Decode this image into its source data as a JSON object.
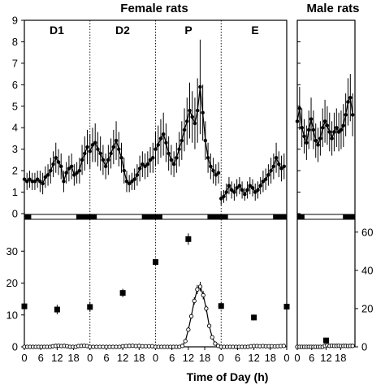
{
  "chart_data": {
    "type": "line",
    "titles": {
      "female": "Female rats",
      "male": "Male rats"
    },
    "xlabel": "Time of Day (h)",
    "phases": [
      "D1",
      "D2",
      "P",
      "E"
    ],
    "hour_ticks": [
      "0",
      "6",
      "12",
      "18"
    ],
    "top_panel": {
      "ylim": [
        0,
        9
      ],
      "yticks": [
        "0",
        "1",
        "2",
        "3",
        "4",
        "5",
        "6",
        "7",
        "8",
        "9"
      ],
      "female_series": [
        {
          "phase": "D1",
          "values": [
            1.6,
            1.5,
            1.6,
            1.5,
            1.5,
            1.6,
            1.5,
            1.4,
            1.7,
            1.8,
            2.0,
            2.3,
            2.6,
            2.4,
            2.2,
            1.5,
            1.9,
            2.1,
            2.2,
            1.8,
            1.9,
            2.0,
            2.5,
            2.8,
            3.1
          ],
          "errors": [
            0.4,
            0.4,
            0.4,
            0.4,
            0.4,
            0.4,
            0.5,
            0.5,
            0.5,
            0.5,
            0.6,
            0.6,
            0.7,
            0.6,
            0.6,
            0.5,
            0.5,
            0.6,
            0.6,
            0.5,
            0.5,
            0.6,
            0.7,
            0.8,
            0.8
          ]
        },
        {
          "phase": "D2",
          "values": [
            2.9,
            3.2,
            3.3,
            3.0,
            2.8,
            2.5,
            2.2,
            2.5,
            2.8,
            3.1,
            3.4,
            3.0,
            2.6,
            2.0,
            1.5,
            1.4,
            1.5,
            1.6,
            1.8,
            2.1,
            2.3,
            2.2,
            2.3,
            2.5,
            2.6
          ],
          "errors": [
            0.8,
            0.8,
            0.9,
            0.8,
            0.8,
            0.7,
            0.6,
            0.7,
            0.7,
            0.8,
            0.9,
            0.8,
            0.7,
            0.6,
            0.5,
            0.4,
            0.4,
            0.5,
            0.5,
            0.6,
            0.6,
            0.6,
            0.6,
            0.6,
            0.7
          ]
        },
        {
          "phase": "P",
          "values": [
            3.0,
            3.2,
            3.5,
            3.7,
            3.3,
            2.8,
            2.5,
            2.3,
            2.6,
            3.0,
            3.4,
            3.9,
            4.3,
            4.8,
            4.5,
            4.2,
            4.8,
            5.9,
            4.7,
            3.4,
            2.6,
            2.2,
            2.0,
            1.8,
            1.9
          ],
          "errors": [
            0.8,
            0.9,
            0.9,
            1.0,
            0.9,
            0.8,
            0.7,
            0.6,
            0.7,
            0.8,
            0.9,
            1.0,
            1.1,
            1.3,
            1.2,
            1.2,
            1.5,
            2.2,
            1.3,
            0.9,
            0.7,
            0.6,
            0.6,
            0.5,
            0.5
          ]
        },
        {
          "phase": "E",
          "values": [
            0.7,
            0.8,
            1.0,
            1.3,
            1.1,
            1.0,
            1.2,
            1.3,
            1.1,
            0.9,
            1.1,
            1.3,
            1.2,
            1.0,
            1.1,
            1.3,
            1.5,
            1.6,
            1.8,
            2.0,
            2.2,
            2.6,
            2.3,
            2.1,
            2.2
          ],
          "errors": [
            0.3,
            0.3,
            0.4,
            0.4,
            0.4,
            0.4,
            0.4,
            0.4,
            0.4,
            0.3,
            0.4,
            0.4,
            0.4,
            0.4,
            0.4,
            0.4,
            0.5,
            0.5,
            0.5,
            0.6,
            0.6,
            0.7,
            0.6,
            0.6,
            0.6
          ]
        }
      ],
      "male_series": {
        "values": [
          4.3,
          4.9,
          4.0,
          3.6,
          3.3,
          3.9,
          4.4,
          3.9,
          3.4,
          3.2,
          3.5,
          4.0,
          4.3,
          4.1,
          3.8,
          3.5,
          3.8,
          4.0,
          3.8,
          3.9,
          4.1,
          4.6,
          5.2,
          5.4,
          4.6
        ],
        "errors": [
          0.9,
          1.0,
          0.9,
          0.8,
          0.8,
          0.9,
          1.0,
          0.9,
          0.8,
          0.8,
          0.8,
          0.9,
          1.0,
          0.9,
          0.9,
          0.8,
          0.9,
          0.9,
          0.9,
          0.9,
          1.0,
          1.0,
          1.1,
          1.1,
          1.0
        ]
      }
    },
    "bottom_panel": {
      "left_ylim": [
        0,
        40
      ],
      "left_yticks": [
        "0",
        "10",
        "20",
        "30"
      ],
      "right_ylim": [
        0,
        66.7
      ],
      "right_yticks": [
        "0",
        "20",
        "40",
        "60"
      ],
      "square_series": [
        {
          "day": 0,
          "hour": 0,
          "value": 12.7,
          "error": 1.0
        },
        {
          "day": 0,
          "hour": 12,
          "value": 11.7,
          "error": 1.5
        },
        {
          "day": 1,
          "hour": 0,
          "value": 12.5,
          "error": 1.5
        },
        {
          "day": 1,
          "hour": 12,
          "value": 16.9,
          "error": 1.3
        },
        {
          "day": 2,
          "hour": 0,
          "value": 26.6,
          "error": 1.0
        },
        {
          "day": 2,
          "hour": 12,
          "value": 33.8,
          "error": 1.8
        },
        {
          "day": 3,
          "hour": 0,
          "value": 12.8,
          "error": 1.0
        },
        {
          "day": 3,
          "hour": 12,
          "value": 9.2,
          "error": 0.9
        },
        {
          "day": 4,
          "hour": 0,
          "value": 12.6,
          "error": 1.0
        }
      ],
      "circle_series": {
        "D1": [
          0.0,
          0.0,
          0.0,
          0.0,
          0.0,
          0.0,
          0.0,
          0.0,
          0.0,
          0.0,
          0.3,
          0.5,
          0.6,
          0.4,
          0.5,
          0.3,
          0.0,
          0.0,
          0.0,
          0.4,
          0.5,
          0.6,
          0.4
        ],
        "D2": [
          0.0,
          0.0,
          0.0,
          0.0,
          0.0,
          0.0,
          0.0,
          0.0,
          0.0,
          0.0,
          0.3,
          0.4,
          0.5,
          0.6,
          0.4,
          0.5,
          0.3,
          0.3,
          0.3,
          0.3
        ],
        "P": [
          0.0,
          0.0,
          0.0,
          0.0,
          0.0,
          0.0,
          0.0,
          0.0,
          0.0,
          0.5,
          3.0,
          9.0,
          16.0,
          24.0,
          30.0,
          31.5,
          27.0,
          20.0,
          11.0,
          5.0,
          1.7,
          0.5
        ],
        "E": [
          0.0,
          0.0,
          0.0,
          0.0,
          0.0,
          0.0,
          0.0,
          0.0,
          0.0,
          0.0,
          0.3,
          0.4,
          0.4,
          0.3,
          0.4,
          0.3,
          0.3,
          0.3,
          0.2,
          0.3,
          0.4,
          0.5
        ],
        "male": [
          0.0,
          0.0,
          0.0,
          0.0,
          0.0,
          0.0,
          0.0,
          0.0,
          0.0,
          0.0,
          0.0,
          0.0,
          0.5,
          0.8,
          0.5,
          0.6,
          0.5,
          0.5,
          0.6,
          0.4,
          0.5,
          0.5,
          0.4,
          0.5,
          0.5
        ]
      },
      "male_square": {
        "hour": 12,
        "value": 2.0,
        "error": 0.6
      }
    }
  }
}
